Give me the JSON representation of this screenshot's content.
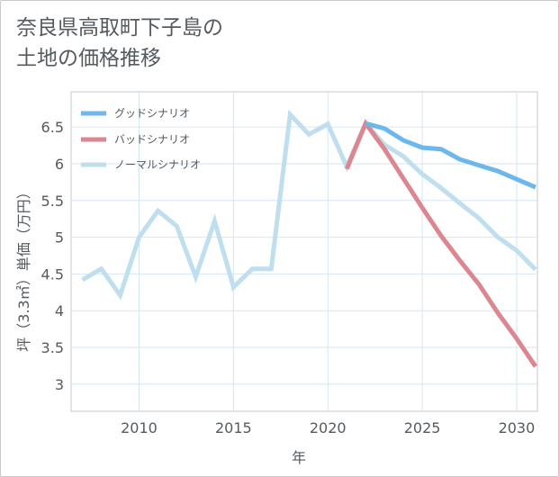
{
  "chart_data": {
    "type": "line",
    "title_line1": "奈良県高取町下子島の",
    "title_line2": "土地の価格推移",
    "xlabel": "年",
    "ylabel": "坪（3.3㎡）単価（万円）",
    "xlim": [
      2006.4,
      2031.1
    ],
    "ylim": [
      2.63,
      6.98
    ],
    "xticks": [
      2010,
      2015,
      2020,
      2025,
      2030
    ],
    "yticks": [
      3,
      3.5,
      4,
      4.5,
      5,
      5.5,
      6,
      6.5
    ],
    "ytick_labels": [
      "3",
      "3.5",
      "4",
      "4.5",
      "5",
      "5.5",
      "6",
      "6.5"
    ],
    "series": [
      {
        "name": "グッドシナリオ",
        "color": "#6cb8ec",
        "x": [
          2022,
          2023,
          2024,
          2025,
          2026,
          2027,
          2028,
          2029,
          2030,
          2031
        ],
        "values": [
          6.55,
          6.48,
          6.32,
          6.22,
          6.2,
          6.06,
          5.98,
          5.9,
          5.79,
          5.68
        ]
      },
      {
        "name": "バッドシナリオ",
        "color": "#dc8790",
        "x": [
          2021,
          2022,
          2023,
          2024,
          2025,
          2026,
          2027,
          2028,
          2029,
          2030,
          2031
        ],
        "values": [
          5.93,
          6.55,
          6.2,
          5.8,
          5.4,
          5.02,
          4.68,
          4.36,
          3.97,
          3.62,
          3.24
        ]
      },
      {
        "name": "ノーマルシナリオ",
        "color": "#bfdeee",
        "x": [
          2007,
          2008,
          2009,
          2010,
          2011,
          2012,
          2013,
          2014,
          2015,
          2016,
          2017,
          2018,
          2019,
          2020,
          2021,
          2022,
          2023,
          2024,
          2025,
          2026,
          2027,
          2028,
          2029,
          2030,
          2031
        ],
        "values": [
          4.42,
          4.57,
          4.21,
          5.0,
          5.36,
          5.15,
          4.46,
          5.22,
          4.32,
          4.57,
          4.57,
          6.67,
          6.4,
          6.54,
          5.96,
          6.55,
          6.26,
          6.1,
          5.86,
          5.67,
          5.46,
          5.26,
          5.0,
          4.82,
          4.56
        ]
      }
    ]
  }
}
